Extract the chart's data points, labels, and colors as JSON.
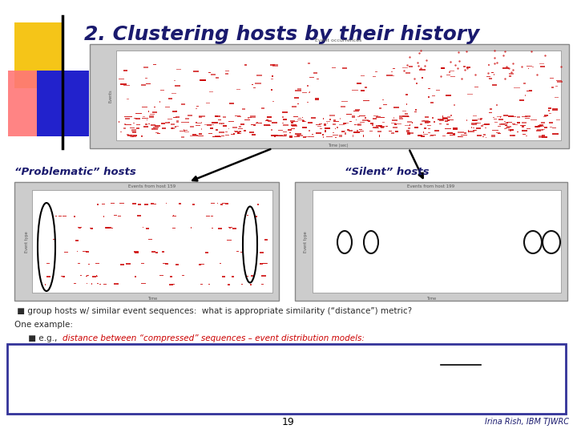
{
  "title": "2. Clustering hosts by their history",
  "title_color": "#1a1a6e",
  "title_fontsize": 18,
  "bg_color": "#ffffff",
  "label_problematic": "“Problematic” hosts",
  "label_silent": "“Silent” hosts",
  "label_color": "#1a1a6e",
  "label_fontsize": 9.5,
  "bullet_text_1": " ■ group hosts w/ similar event sequences:  what is appropriate similarity (“distance”) metric?",
  "bullet_text_2": "One example:",
  "bullet_color": "#2b2b2b",
  "eg_prefix": " ■ e.g.,  ",
  "eg_red": "distance between “compressed” sequences – event distribution models:",
  "page_num": "19",
  "author": "Irina Rish, IBM TJWRC"
}
